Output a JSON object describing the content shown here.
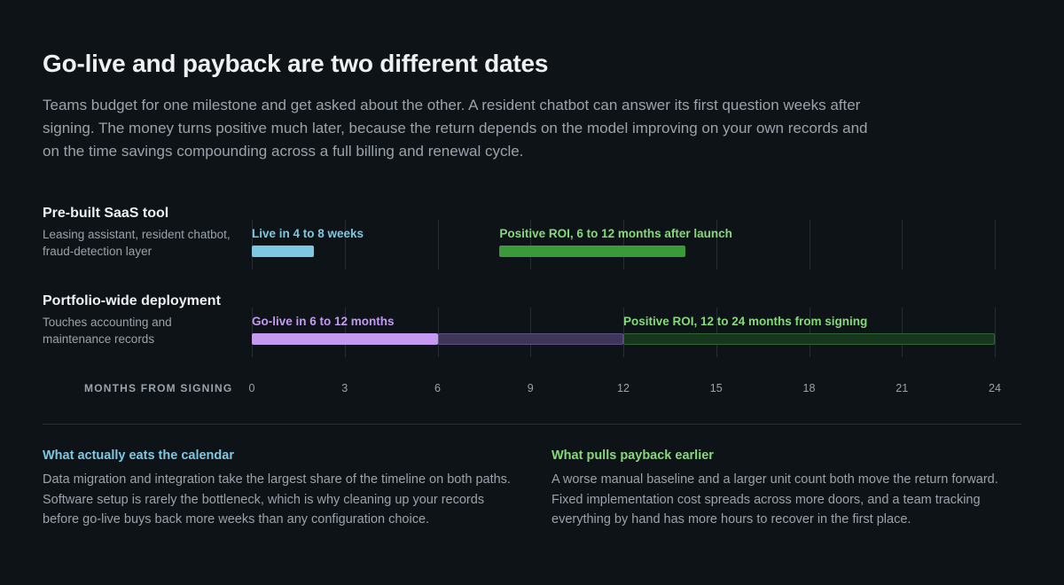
{
  "title": "Go-live and payback are two different dates",
  "intro": "Teams budget for one milestone and get asked about the other. A resident chatbot can answer its first question weeks after signing. The money turns positive much later, because the return depends on the model improving on your own records and on the time savings compounding across a full billing and renewal cycle.",
  "colors": {
    "saas_live": "#7ec8e3",
    "saas_roi": "#3a9a3a",
    "golive_solid": "#c39af0",
    "golive_range": "#3e3658",
    "roi_range": "#17361d",
    "label_saas_live": "#7ec8e3",
    "label_green": "#86d97a",
    "label_purple": "#c39af0"
  },
  "rows": [
    {
      "title": "Pre-built SaaS tool",
      "subtitle": "Leasing assistant, resident chatbot, fraud-detection layer"
    },
    {
      "title": "Portfolio-wide deployment",
      "subtitle": "Touches accounting and maintenance records"
    }
  ],
  "chart_data": {
    "type": "gantt",
    "xlabel": "MONTHS FROM SIGNING",
    "xlim": [
      0,
      24
    ],
    "ticks": [
      0,
      3,
      6,
      9,
      12,
      15,
      18,
      21,
      24
    ],
    "categories": [
      "Pre-built SaaS tool",
      "Portfolio-wide deployment"
    ],
    "bars": [
      {
        "row": 0,
        "label": "Live in 4 to 8 weeks",
        "start": 0,
        "end": 2,
        "style": "solid",
        "color": "#7ec8e3"
      },
      {
        "row": 0,
        "label": "Positive ROI, 6 to 12 months after launch",
        "start": 8,
        "end": 14,
        "style": "solid",
        "color": "#3a9a3a"
      },
      {
        "row": 1,
        "label": "Go-live in 6 to 12 months",
        "start": 0,
        "end": 6,
        "style": "solid",
        "color": "#c39af0"
      },
      {
        "row": 1,
        "label": "",
        "start": 6,
        "end": 12,
        "style": "range",
        "color": "#3e3658"
      },
      {
        "row": 1,
        "label": "Positive ROI, 12 to 24 months from signing",
        "start": 12,
        "end": 24,
        "style": "range",
        "color": "#17361d"
      }
    ]
  },
  "notes": [
    {
      "title": "What actually eats the calendar",
      "body": "Data migration and integration take the largest share of the timeline on both paths. Software setup is rarely the bottleneck, which is why cleaning up your records before go-live buys back more weeks than any configuration choice."
    },
    {
      "title": "What pulls payback earlier",
      "body": "A worse manual baseline and a larger unit count both move the return forward. Fixed implementation cost spreads across more doors, and a team tracking everything by hand has more hours to recover in the first place."
    }
  ]
}
